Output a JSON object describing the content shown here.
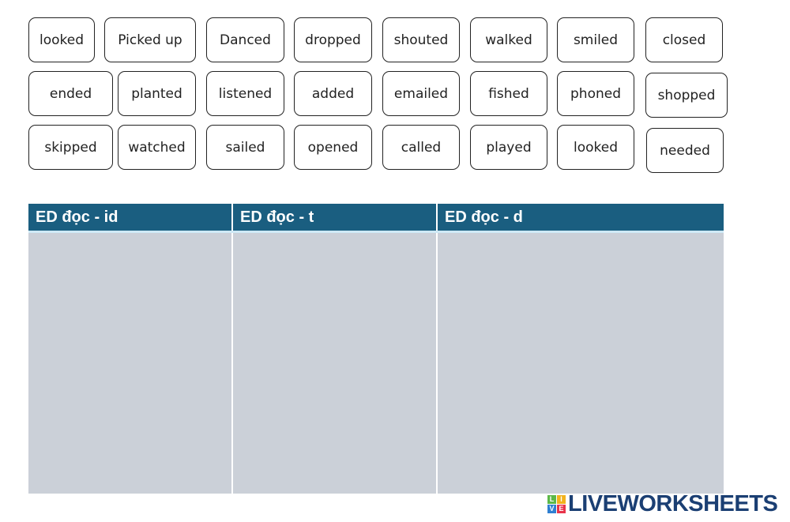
{
  "word_cards": [
    "looked",
    "Picked up",
    "Danced",
    "dropped",
    "shouted",
    "walked",
    "smiled",
    "closed",
    "ended",
    "planted",
    "listened",
    "added",
    "emailed",
    "fished",
    "phoned",
    "shopped",
    "skipped",
    "watched",
    "sailed",
    "opened",
    "called",
    "played",
    "looked",
    "needed"
  ],
  "table": {
    "columns": [
      {
        "label": "ED đọc - id"
      },
      {
        "label": "ED đọc - t"
      },
      {
        "label": "ED đọc - d"
      }
    ]
  },
  "colors": {
    "header": "#1a5e80",
    "drop_zone": "#cbd0d8",
    "logo": "#1b3f73"
  },
  "logo": {
    "text": "LIVEWORKSHEETS",
    "letters": [
      "L",
      "I",
      "V",
      "E"
    ]
  }
}
